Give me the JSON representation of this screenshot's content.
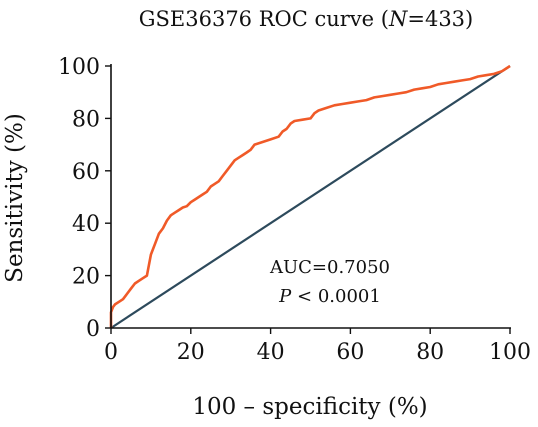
{
  "chart_data": {
    "type": "line",
    "title_prefix": "GSE36376 ROC curve (",
    "title_italic": "N",
    "title_suffix": "=433)",
    "xlabel": "100 – specificity (%)",
    "ylabel": "Sensitivity (%)",
    "xlim": [
      0,
      100
    ],
    "ylim": [
      0,
      100
    ],
    "x_ticks": [
      0,
      20,
      40,
      60,
      80,
      100
    ],
    "y_ticks": [
      0,
      20,
      40,
      60,
      80,
      100
    ],
    "grid": false,
    "annotations": {
      "auc": "AUC=0.7050",
      "p_italic": "P",
      "p_rest": " < 0.0001"
    },
    "series": [
      {
        "role": "roc",
        "color": "#f05a28",
        "x": [
          0,
          0,
          0.5,
          1,
          2,
          3,
          4,
          5,
          6,
          7,
          8,
          9,
          9.5,
          10,
          10.5,
          11,
          12,
          13,
          14,
          15,
          16,
          17,
          18,
          19,
          20,
          21,
          22,
          23,
          24,
          25,
          26,
          27,
          28,
          29,
          30,
          31,
          32,
          33,
          34,
          35,
          36,
          38,
          40,
          42,
          43,
          44,
          45,
          46,
          48,
          50,
          51,
          52,
          54,
          56,
          58,
          60,
          62,
          64,
          66,
          68,
          70,
          72,
          74,
          76,
          78,
          80,
          82,
          84,
          86,
          88,
          90,
          92,
          94,
          96,
          98,
          99,
          100
        ],
        "y": [
          0,
          6,
          8,
          9,
          10,
          11,
          13,
          15,
          17,
          18,
          19,
          20,
          24,
          28,
          30,
          32,
          36,
          38,
          41,
          43,
          44,
          45,
          46,
          46.5,
          48,
          49,
          50,
          51,
          52,
          54,
          55,
          56,
          58,
          60,
          62,
          64,
          65,
          66,
          67,
          68,
          70,
          71,
          72,
          73,
          75,
          76,
          78,
          79,
          79.5,
          80,
          82,
          83,
          84,
          85,
          85.5,
          86,
          86.5,
          87,
          88,
          88.5,
          89,
          89.5,
          90,
          91,
          91.5,
          92,
          93,
          93.5,
          94,
          94.5,
          95,
          96,
          96.5,
          97,
          98,
          99,
          100
        ]
      },
      {
        "role": "reference",
        "color": "#2d4a5c",
        "x": [
          0,
          100
        ],
        "y": [
          0,
          100
        ]
      }
    ]
  }
}
